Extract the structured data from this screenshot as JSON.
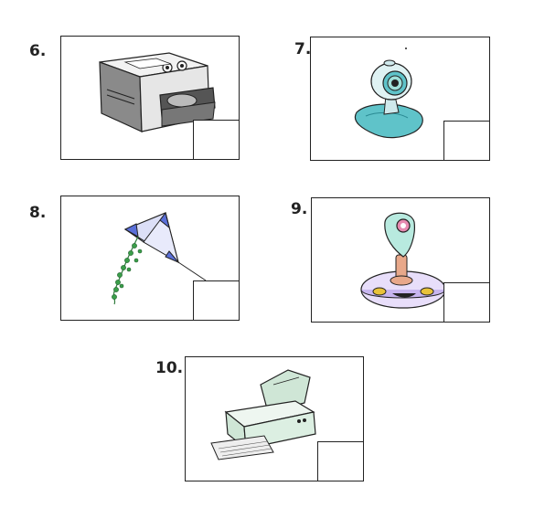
{
  "items": [
    {
      "number": "6.",
      "icon": "cd-rom-drive-icon"
    },
    {
      "number": "7.",
      "icon": "webcam-icon"
    },
    {
      "number": "8.",
      "icon": "kite-icon"
    },
    {
      "number": "9.",
      "icon": "joystick-icon"
    },
    {
      "number": "10.",
      "icon": "printer-icon"
    }
  ],
  "colors": {
    "border": "#222222",
    "drive_grey": "#8a8a8a",
    "webcam_teal": "#5fc3c9",
    "kite_blue": "#5a6fd8",
    "joystick_pink": "#e68ab0",
    "printer_green": "#cfe6d6"
  }
}
